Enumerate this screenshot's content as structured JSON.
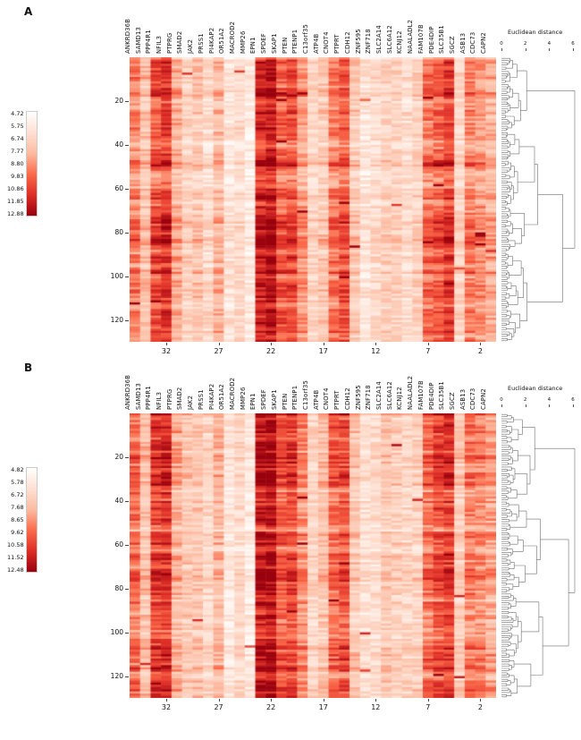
{
  "colors": {
    "ramp": [
      "#ffffff",
      "#fee0d2",
      "#fcbba1",
      "#fb6a4a",
      "#de2d26",
      "#99000d"
    ],
    "dendrogram_stroke": "#6e6e6e",
    "tick_color": "#444444"
  },
  "chart_data": [
    {
      "type": "heatmap",
      "panel": "A",
      "distance_label": "Euclidean distance",
      "distance_ticks": [
        0,
        2,
        4,
        6
      ],
      "genes": [
        "ANKRD36B",
        "SAMD13",
        "PPP4R1",
        "NFIL3",
        "PTPRG",
        "SMAD2",
        "JAK2",
        "PRSS1",
        "PI4KAP2",
        "OR51A2",
        "MACROD2",
        "MMP26",
        "EPN1",
        "SPDEF",
        "SKAP1",
        "PTEN",
        "PTENP1",
        "C13orf35",
        "ATP4B",
        "CNOT4",
        "PTPRT",
        "CDH12",
        "ZNF595",
        "ZNF718",
        "SLC2A14",
        "SLC6A12",
        "KCNJ12",
        "NAALADL2",
        "FAM107B",
        "PDE4DIP",
        "SLC35B1",
        "SGCZ",
        "ASB13",
        "CDC73",
        "CAPN2"
      ],
      "n_rows": 130,
      "row_ticks": [
        20,
        40,
        60,
        80,
        100,
        120
      ],
      "col_axis_ticks": [
        32,
        27,
        22,
        17,
        12,
        7,
        2
      ],
      "legend_values": [
        "4.72",
        "5.75",
        "6.74",
        "7.77",
        "8.80",
        "9.83",
        "10.86",
        "11.85",
        "12.88"
      ],
      "column_intensity": [
        0.58,
        0.38,
        0.72,
        0.8,
        0.45,
        0.3,
        0.36,
        0.24,
        0.42,
        0.18,
        0.26,
        0.14,
        0.88,
        0.95,
        0.68,
        0.74,
        0.5,
        0.28,
        0.34,
        0.6,
        0.7,
        0.34,
        0.18,
        0.24,
        0.3,
        0.3,
        0.24,
        0.3,
        0.62,
        0.68,
        0.78,
        0.28,
        0.58,
        0.52,
        0.44
      ],
      "seed": 1337
    },
    {
      "type": "heatmap",
      "panel": "B",
      "distance_label": "Euclidean distance",
      "distance_ticks": [
        0,
        2,
        4,
        6
      ],
      "genes": [
        "ANKRD36B",
        "SAMD13",
        "PPP4R1",
        "NFIL3",
        "PTPRG",
        "SMAD2",
        "JAK2",
        "PRSS1",
        "PI4KAP2",
        "OR51A2",
        "MACROD2",
        "MMP26",
        "EPN1",
        "SPDEF",
        "SKAP1",
        "PTEN",
        "PTENP1",
        "C13orf35",
        "ATP4B",
        "CNOT4",
        "PTPRT",
        "CDH12",
        "ZNF595",
        "ZNF718",
        "SLC2A14",
        "SLC6A12",
        "KCNJ12",
        "NAALADL2",
        "FAM107B",
        "PDE4DIP",
        "SLC35B1",
        "SGCZ",
        "ASB13",
        "CDC73",
        "CAPN2"
      ],
      "n_rows": 130,
      "row_ticks": [
        20,
        40,
        60,
        80,
        100,
        120
      ],
      "col_axis_ticks": [
        32,
        27,
        22,
        17,
        12,
        7,
        2
      ],
      "legend_values": [
        "4.82",
        "5.78",
        "6.72",
        "7.68",
        "8.65",
        "9.62",
        "10.58",
        "11.52",
        "12.48"
      ],
      "column_intensity": [
        0.6,
        0.36,
        0.74,
        0.78,
        0.43,
        0.32,
        0.34,
        0.26,
        0.4,
        0.16,
        0.24,
        0.15,
        0.9,
        0.93,
        0.66,
        0.72,
        0.52,
        0.26,
        0.36,
        0.62,
        0.68,
        0.32,
        0.2,
        0.22,
        0.32,
        0.28,
        0.26,
        0.28,
        0.6,
        0.7,
        0.76,
        0.3,
        0.56,
        0.54,
        0.46
      ],
      "seed": 7331
    }
  ]
}
